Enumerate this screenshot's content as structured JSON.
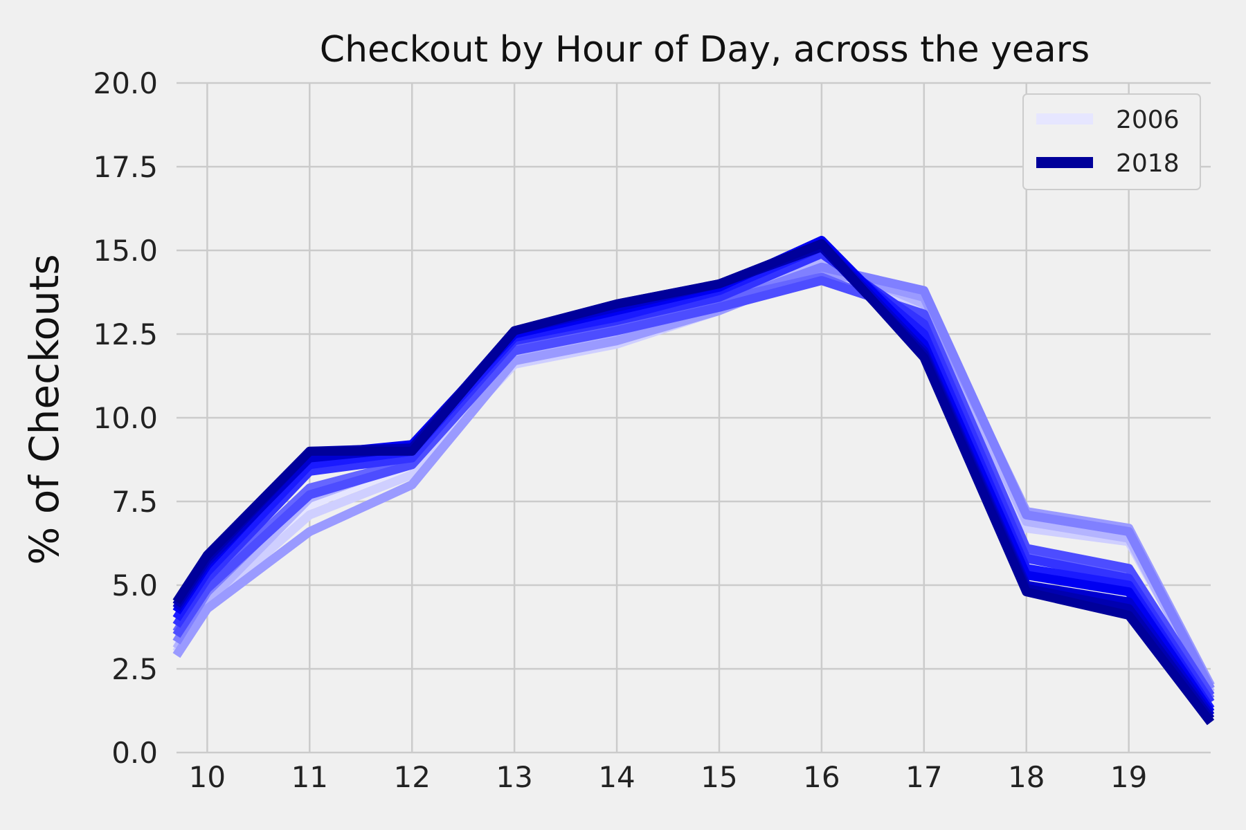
{
  "chart_data": {
    "type": "line",
    "title": "Checkout by Hour of Day, across the years",
    "xlabel": "",
    "ylabel": "% of Checkouts",
    "x": [
      9.7,
      10,
      11,
      12,
      13,
      14,
      15,
      16,
      17,
      18,
      19,
      19.8
    ],
    "xlim": [
      9.7,
      19.8
    ],
    "ylim": [
      0,
      20
    ],
    "xticks": [
      "10",
      "11",
      "12",
      "13",
      "14",
      "15",
      "16",
      "17",
      "18",
      "19"
    ],
    "yticks": [
      "0.0",
      "2.5",
      "5.0",
      "7.5",
      "10.0",
      "12.5",
      "15.0",
      "17.5",
      "20.0"
    ],
    "grid": true,
    "legend_position": "top-right",
    "legend": [
      "2006",
      "2018"
    ],
    "series": [
      {
        "name": "2006",
        "color": "#e6e6ff",
        "values": [
          3.2,
          4.6,
          7.4,
          8.6,
          11.8,
          12.5,
          13.4,
          14.8,
          13.3,
          6.8,
          6.4,
          1.8
        ]
      },
      {
        "color": "#cfcfff",
        "values": [
          3.0,
          4.4,
          7.1,
          8.3,
          11.6,
          12.2,
          13.2,
          14.6,
          13.2,
          6.7,
          6.3,
          1.9
        ]
      },
      {
        "color": "#b4b4ff",
        "values": [
          3.1,
          4.5,
          7.6,
          8.7,
          11.9,
          12.4,
          13.3,
          14.7,
          13.4,
          6.9,
          6.4,
          1.8
        ]
      },
      {
        "color": "#9a9aff",
        "values": [
          2.9,
          4.3,
          6.6,
          8.0,
          11.7,
          12.3,
          13.2,
          14.4,
          13.6,
          7.2,
          6.7,
          2.0
        ]
      },
      {
        "color": "#8080ff",
        "values": [
          3.3,
          4.8,
          7.8,
          8.6,
          12.0,
          12.7,
          13.4,
          14.5,
          13.8,
          7.1,
          6.6,
          1.9
        ]
      },
      {
        "color": "#6666ff",
        "values": [
          3.6,
          5.0,
          7.9,
          8.7,
          12.1,
          12.8,
          13.5,
          14.2,
          13.0,
          6.0,
          5.4,
          1.6
        ]
      },
      {
        "color": "#4d4dff",
        "values": [
          3.5,
          4.9,
          7.7,
          8.6,
          12.0,
          12.6,
          13.3,
          14.1,
          13.1,
          6.1,
          5.5,
          1.7
        ]
      },
      {
        "color": "#3333ff",
        "values": [
          3.8,
          5.2,
          8.4,
          8.8,
          12.3,
          12.9,
          13.6,
          14.9,
          12.8,
          5.8,
          5.2,
          1.5
        ]
      },
      {
        "color": "#1a1aff",
        "values": [
          4.0,
          5.4,
          8.6,
          9.0,
          12.4,
          13.0,
          13.8,
          15.1,
          12.5,
          5.5,
          5.0,
          1.3
        ]
      },
      {
        "color": "#0000f2",
        "values": [
          4.2,
          5.6,
          8.9,
          9.2,
          12.5,
          13.2,
          13.9,
          15.3,
          12.2,
          5.3,
          4.8,
          1.2
        ]
      },
      {
        "color": "#0000d0",
        "values": [
          4.3,
          5.7,
          8.8,
          9.1,
          12.6,
          13.3,
          14.0,
          15.2,
          12.0,
          5.0,
          4.5,
          1.1
        ]
      },
      {
        "color": "#0000b0",
        "values": [
          4.4,
          5.8,
          9.0,
          9.1,
          12.6,
          13.4,
          14.0,
          15.1,
          11.9,
          4.9,
          4.3,
          1.0
        ]
      },
      {
        "name": "2018",
        "color": "#00009a",
        "values": [
          4.5,
          5.9,
          9.0,
          9.0,
          12.6,
          13.4,
          14.0,
          15.2,
          11.8,
          4.8,
          4.1,
          0.9
        ]
      }
    ]
  }
}
